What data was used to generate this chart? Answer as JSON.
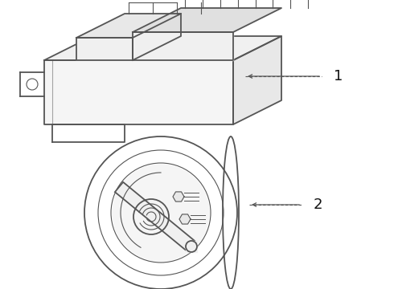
{
  "bg_color": "#ffffff",
  "line_color": "#555555",
  "label_color": "#111111",
  "fig_width": 4.9,
  "fig_height": 3.6,
  "dpi": 100
}
